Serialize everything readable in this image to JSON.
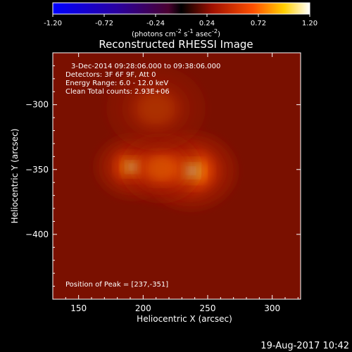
{
  "chart_data": {
    "type": "heatmap",
    "title": "Reconstructed RHESSI Image",
    "xlabel": "Heliocentric X (arcsec)",
    "ylabel": "Heliocentric Y (arcsec)",
    "xlim": [
      130,
      322
    ],
    "ylim": [
      -450,
      -260
    ],
    "xticks": [
      150,
      200,
      250,
      300
    ],
    "yticks": [
      -300,
      -350,
      -400
    ],
    "annotations": [
      "3-Dec-2014 09:28:06.000 to 09:38:06.000",
      "Detectors: 3F 6F 9F, Att 0",
      "Energy Range: 6.0 - 12.0 keV",
      "Clean    Total counts: 2.93E+06"
    ],
    "peak_label": "Position of Peak = [237,-351]",
    "sources": [
      {
        "x": 192,
        "y": -348,
        "peak": 0.82,
        "sigma": 9
      },
      {
        "x": 237,
        "y": -351,
        "peak": 1.0,
        "sigma": 11
      },
      {
        "x": 214,
        "y": -349,
        "peak": 0.55,
        "sigma": 10
      },
      {
        "x": 210,
        "y": -303,
        "peak": 0.25,
        "sigma": 12
      }
    ],
    "colorbar": {
      "range": [
        -1.2,
        1.2
      ],
      "ticks": [
        "-1.20",
        "-0.72",
        "-0.24",
        "0.24",
        "0.72",
        "1.20"
      ],
      "unit_html": "(photons cm<sup>-2</sup> s<sup>-1</sup> asec<sup>-2</sup>)"
    },
    "colors": {
      "background_level": "#7a1000",
      "core": "#ffffb0"
    }
  },
  "footer": {
    "timestamp": "19-Aug-2017 10:42"
  }
}
